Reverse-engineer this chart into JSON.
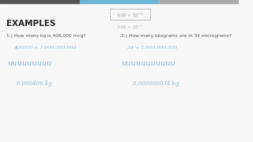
{
  "bg_color": "#f7f7f7",
  "top_bar_left_color": "#555555",
  "top_bar_mid_color": "#6ab4d4",
  "top_bar_right_color": "#aaaaaa",
  "title_text": "EXAMPLES",
  "title_fontsize": 7.5,
  "title_color": "#222222",
  "q1_text": "1.) How many kg is 406,000 mcg?",
  "q2_text": "2.) How many kilograms are in 34 micrograms?",
  "q1_step1": "406000 ÷ 1,000,000,000",
  "q1_step3": "0.000406 kg",
  "q2_step1": "34 ÷ 1,000,000,000",
  "q2_step3": "0.000000034 kg",
  "handwrite_color": "#8ab8cc",
  "question_color": "#555555",
  "question_fontsize": 4.2,
  "step_fontsize": 4.5,
  "answer_fontsize": 5.0,
  "wavy_fontsize": 7.0
}
